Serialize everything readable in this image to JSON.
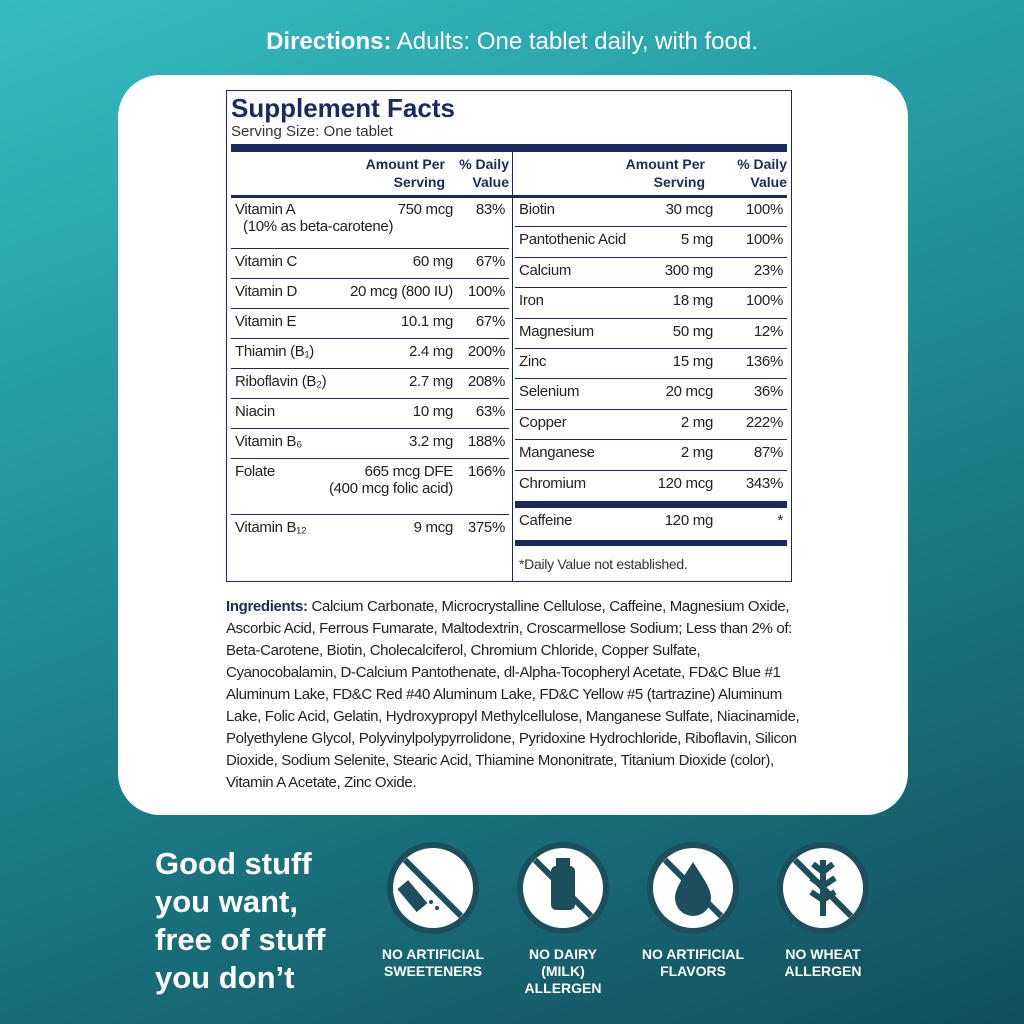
{
  "directions": {
    "label": "Directions:",
    "text": "Adults: One tablet daily, with food."
  },
  "facts": {
    "title": "Supplement Facts",
    "serving": "Serving Size: One tablet",
    "headers": {
      "amount": [
        "Amount Per",
        "Serving"
      ],
      "dv": [
        "% Daily",
        "Value"
      ]
    },
    "left": [
      {
        "name": "Vitamin A",
        "note": "(10% as beta-carotene)",
        "amount": "750 mcg",
        "dv": "83%"
      },
      {
        "name": "Vitamin C",
        "amount": "60 mg",
        "dv": "67%"
      },
      {
        "name": "Vitamin D",
        "amount": "20 mcg (800 IU)",
        "dv": "100%"
      },
      {
        "name": "Vitamin E",
        "amount": "10.1 mg",
        "dv": "67%"
      },
      {
        "name": "Thiamin (B₁)",
        "amount": "2.4 mg",
        "dv": "200%"
      },
      {
        "name": "Riboflavin (B₂)",
        "amount": "2.7 mg",
        "dv": "208%"
      },
      {
        "name": "Niacin",
        "amount": "10 mg",
        "dv": "63%"
      },
      {
        "name": "Vitamin B₆",
        "amount": "3.2 mg",
        "dv": "188%"
      },
      {
        "name": "Folate",
        "amount": "665 mcg DFE",
        "note": "(400 mcg folic acid)",
        "dv": "166%"
      },
      {
        "name": "Vitamin B₁₂",
        "amount": "9 mcg",
        "dv": "375%"
      }
    ],
    "right": [
      {
        "name": "Biotin",
        "amount": "30 mcg",
        "dv": "100%"
      },
      {
        "name": "Pantothenic Acid",
        "amount": "5 mg",
        "dv": "100%"
      },
      {
        "name": "Calcium",
        "amount": "300 mg",
        "dv": "23%"
      },
      {
        "name": "Iron",
        "amount": "18 mg",
        "dv": "100%"
      },
      {
        "name": "Magnesium",
        "amount": "50 mg",
        "dv": "12%"
      },
      {
        "name": "Zinc",
        "amount": "15 mg",
        "dv": "136%"
      },
      {
        "name": "Selenium",
        "amount": "20 mcg",
        "dv": "36%"
      },
      {
        "name": "Copper",
        "amount": "2 mg",
        "dv": "222%"
      },
      {
        "name": "Manganese",
        "amount": "2 mg",
        "dv": "87%"
      },
      {
        "name": "Chromium",
        "amount": "120 mcg",
        "dv": "343%"
      }
    ],
    "caffeine": {
      "name": "Caffeine",
      "amount": "120 mg",
      "dv": "*"
    },
    "footnote": "*Daily Value not established."
  },
  "ingredients": {
    "label": "Ingredients:",
    "text": "Calcium Carbonate, Microcrystalline Cellulose, Caffeine, Magnesium Oxide, Ascorbic Acid, Ferrous Fumarate, Maltodextrin, Croscarmellose Sodium; Less than 2% of: Beta-Carotene, Biotin, Cholecalciferol, Chromium Chloride, Copper Sulfate, Cyanocobalamin, D-Calcium Pantothenate, dl-Alpha-Tocopheryl Acetate, FD&C Blue #1 Aluminum Lake, FD&C Red #40 Aluminum Lake, FD&C Yellow #5 (tartrazine) Aluminum Lake, Folic Acid, Gelatin, Hydroxypropyl Methylcellulose, Manganese Sulfate, Niacinamide, Polyethylene Glycol, Polyvinylpolypyrrolidone, Pyridoxine Hydrochloride, Riboflavin, Silicon Dioxide, Sodium Selenite, Stearic Acid, Thiamine Mononitrate, Titanium Dioxide (color), Vitamin A Acetate, Zinc Oxide."
  },
  "tagline": [
    "Good stuff",
    "you want,",
    "free of stuff",
    "you don’t"
  ],
  "badges": [
    {
      "label": [
        "NO ARTIFICIAL",
        "SWEETENERS"
      ]
    },
    {
      "label": [
        "NO DAIRY",
        "(MILK)",
        "ALLERGEN"
      ]
    },
    {
      "label": [
        "NO ARTIFICIAL",
        "FLAVORS"
      ]
    },
    {
      "label": [
        "NO WHEAT",
        "ALLERGEN"
      ]
    }
  ]
}
